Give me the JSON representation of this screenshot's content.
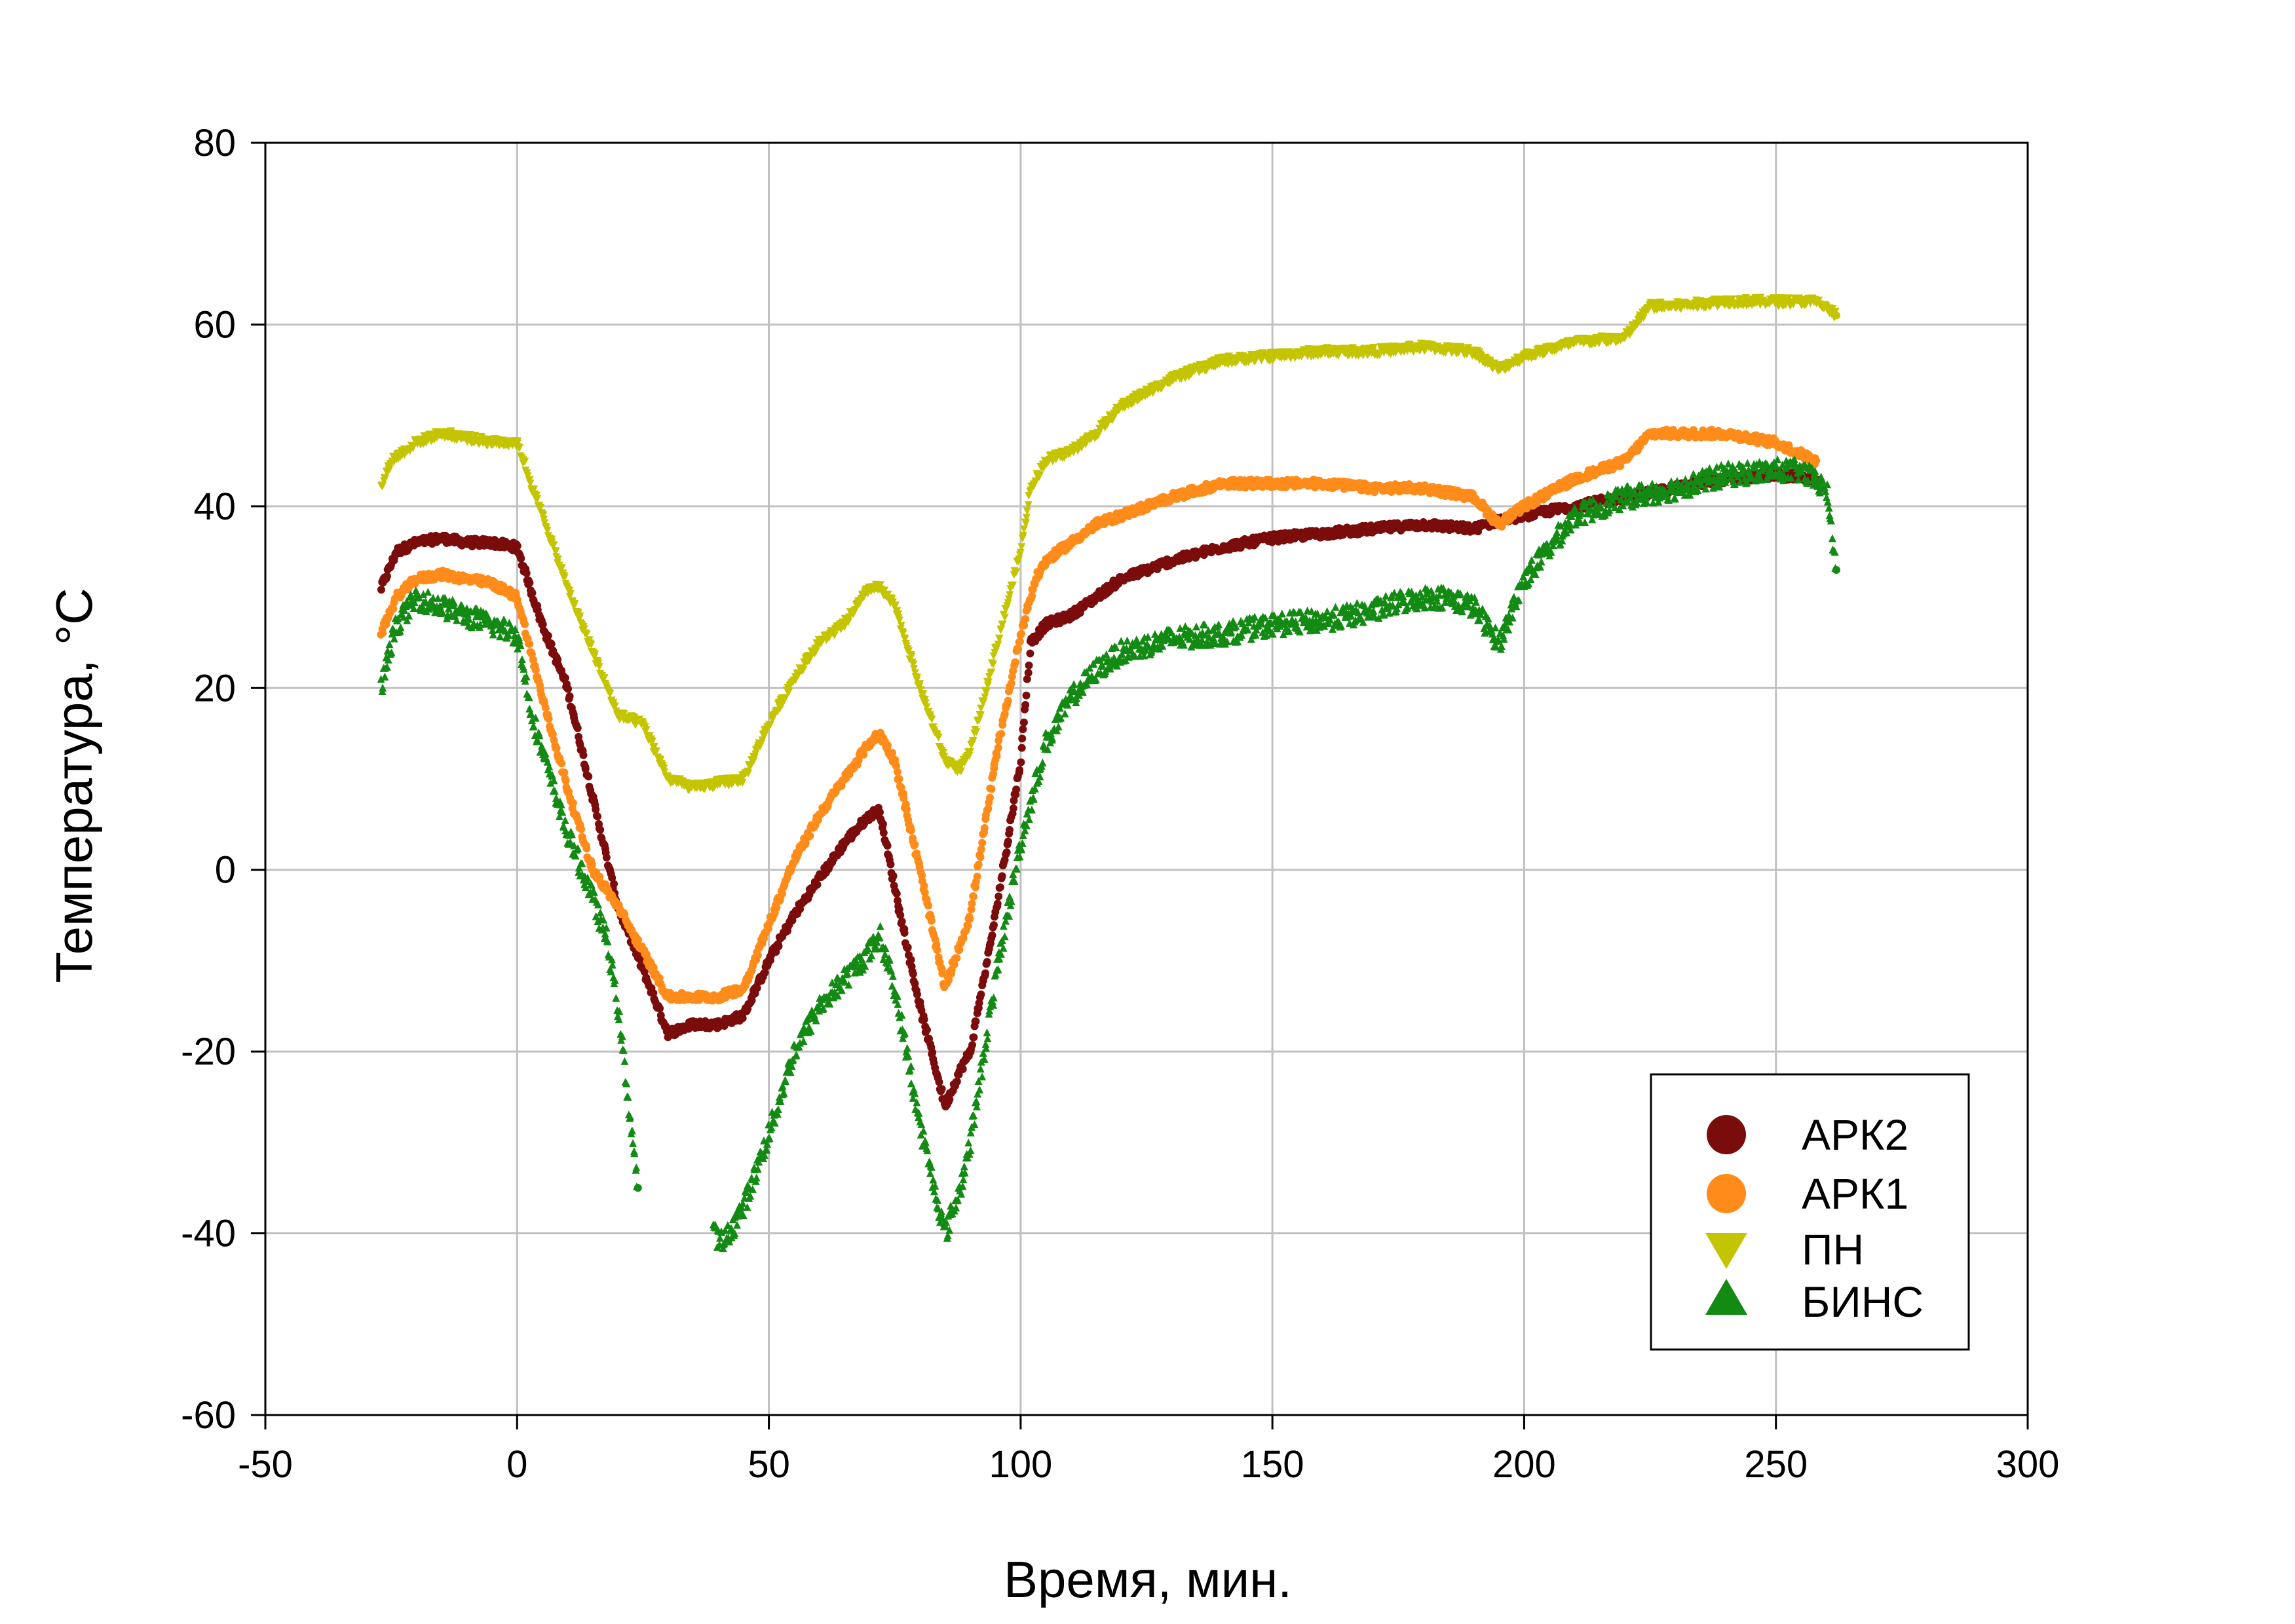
{
  "chart_data": {
    "type": "scatter",
    "xlabel": "Время, мин.",
    "ylabel": "Температура, °C",
    "xlim": [
      -50,
      300
    ],
    "ylim": [
      -60,
      80
    ],
    "xticks": [
      -50,
      0,
      50,
      100,
      150,
      200,
      250,
      300
    ],
    "yticks": [
      -60,
      -40,
      -20,
      0,
      20,
      40,
      60,
      80
    ],
    "x_tick_labels": [
      "-50",
      "0",
      "50",
      "100",
      "150",
      "200",
      "250",
      "300"
    ],
    "y_tick_labels": [
      "-60",
      "-40",
      "-20",
      "0",
      "20",
      "40",
      "60",
      "80"
    ],
    "grid": true,
    "legend_position": "bottom-right",
    "series": [
      {
        "name": "АРК2",
        "marker": "circle",
        "color": "#7b0c0c",
        "x": [
          -27,
          -24,
          -20,
          -15,
          -10,
          -5,
          0,
          5,
          10,
          15,
          20,
          25,
          30,
          35,
          40,
          45,
          50,
          55,
          60,
          65,
          70,
          72,
          75,
          80,
          85,
          88,
          90,
          95,
          100,
          102,
          105,
          110,
          115,
          120,
          130,
          140,
          150,
          160,
          170,
          180,
          190,
          195,
          200,
          210,
          220,
          230,
          240,
          250,
          258
        ],
        "y": [
          31,
          35,
          36,
          36.5,
          36,
          36,
          35.5,
          27,
          20,
          8,
          -4,
          -11,
          -18,
          -17,
          -17,
          -16,
          -10,
          -5,
          -1,
          3,
          6,
          6.5,
          -2,
          -15,
          -26,
          -22,
          -20,
          -5,
          12,
          25,
          27,
          28,
          30,
          32,
          34,
          35.5,
          36.5,
          37,
          37.5,
          38,
          37.5,
          38.5,
          39,
          40,
          41,
          42,
          43,
          43.5,
          43
        ]
      },
      {
        "name": "АРК1",
        "marker": "circle",
        "color": "#ff8c1a",
        "x": [
          -27,
          -24,
          -20,
          -15,
          -10,
          -5,
          0,
          5,
          10,
          15,
          20,
          25,
          30,
          35,
          40,
          45,
          50,
          55,
          60,
          65,
          70,
          72,
          75,
          80,
          85,
          90,
          95,
          100,
          103,
          105,
          110,
          115,
          120,
          130,
          140,
          150,
          160,
          170,
          180,
          190,
          195,
          200,
          210,
          220,
          225,
          230,
          240,
          250,
          258
        ],
        "y": [
          26,
          30,
          32,
          32.5,
          32,
          31.5,
          30,
          19,
          9,
          0,
          -4,
          -9,
          -14,
          -14,
          -14,
          -13,
          -6,
          1,
          6,
          10,
          14,
          15,
          12,
          0,
          -13,
          -5,
          12,
          26,
          32,
          34,
          36,
          38,
          39,
          41,
          42.5,
          42.5,
          42.5,
          42,
          42,
          41,
          38,
          40,
          43,
          45,
          48,
          48,
          48,
          47,
          45
        ]
      },
      {
        "name": "ПН",
        "marker": "triangle-down",
        "color": "#c4c400",
        "x": [
          -27,
          -25,
          -20,
          -15,
          -10,
          -5,
          0,
          3,
          5,
          10,
          15,
          20,
          25,
          30,
          35,
          40,
          45,
          50,
          55,
          60,
          65,
          70,
          72,
          75,
          80,
          85,
          88,
          90,
          95,
          100,
          102,
          105,
          110,
          115,
          120,
          130,
          140,
          150,
          160,
          170,
          180,
          190,
          195,
          200,
          210,
          220,
          225,
          230,
          240,
          250,
          258,
          262
        ],
        "y": [
          42,
          45,
          47,
          48,
          47.5,
          47,
          47,
          42,
          39,
          31,
          24,
          17,
          16,
          10,
          9,
          9.5,
          10,
          16,
          21,
          25,
          27,
          31,
          31,
          29,
          20,
          12,
          11,
          13,
          24,
          35,
          42,
          45,
          46,
          48,
          51,
          54,
          56,
          56.5,
          57,
          57,
          57.5,
          57,
          55,
          56.5,
          58,
          58.5,
          62,
          62,
          62.5,
          62.5,
          62.5,
          61
        ]
      },
      {
        "name": "БИНС",
        "marker": "triangle-up",
        "color": "#138a13",
        "x": [
          -27,
          -24,
          -20,
          -15,
          -10,
          -5,
          0,
          3,
          5,
          10,
          15,
          18,
          20,
          22,
          24,
          null,
          39,
          41,
          45,
          50,
          55,
          60,
          65,
          70,
          72,
          75,
          80,
          85,
          88,
          90,
          95,
          100,
          105,
          110,
          115,
          120,
          130,
          140,
          150,
          160,
          170,
          175,
          180,
          185,
          190,
          195,
          200,
          210,
          220,
          230,
          240,
          250,
          255,
          260,
          262
        ],
        "y": [
          20,
          27,
          30,
          29,
          28,
          27,
          26,
          17,
          13,
          4,
          -3,
          -8,
          -15,
          -25,
          -35,
          null,
          -40,
          -41,
          -37,
          -29,
          -20,
          -15,
          -12,
          -9,
          -7,
          -13,
          -28,
          -40,
          -35,
          -30,
          -12,
          3,
          14,
          19,
          22,
          24,
          25.5,
          26,
          27,
          27.5,
          28.5,
          29.5,
          30,
          30,
          29,
          25,
          32,
          39,
          41,
          42,
          43.5,
          44,
          44,
          42,
          33
        ]
      }
    ]
  }
}
